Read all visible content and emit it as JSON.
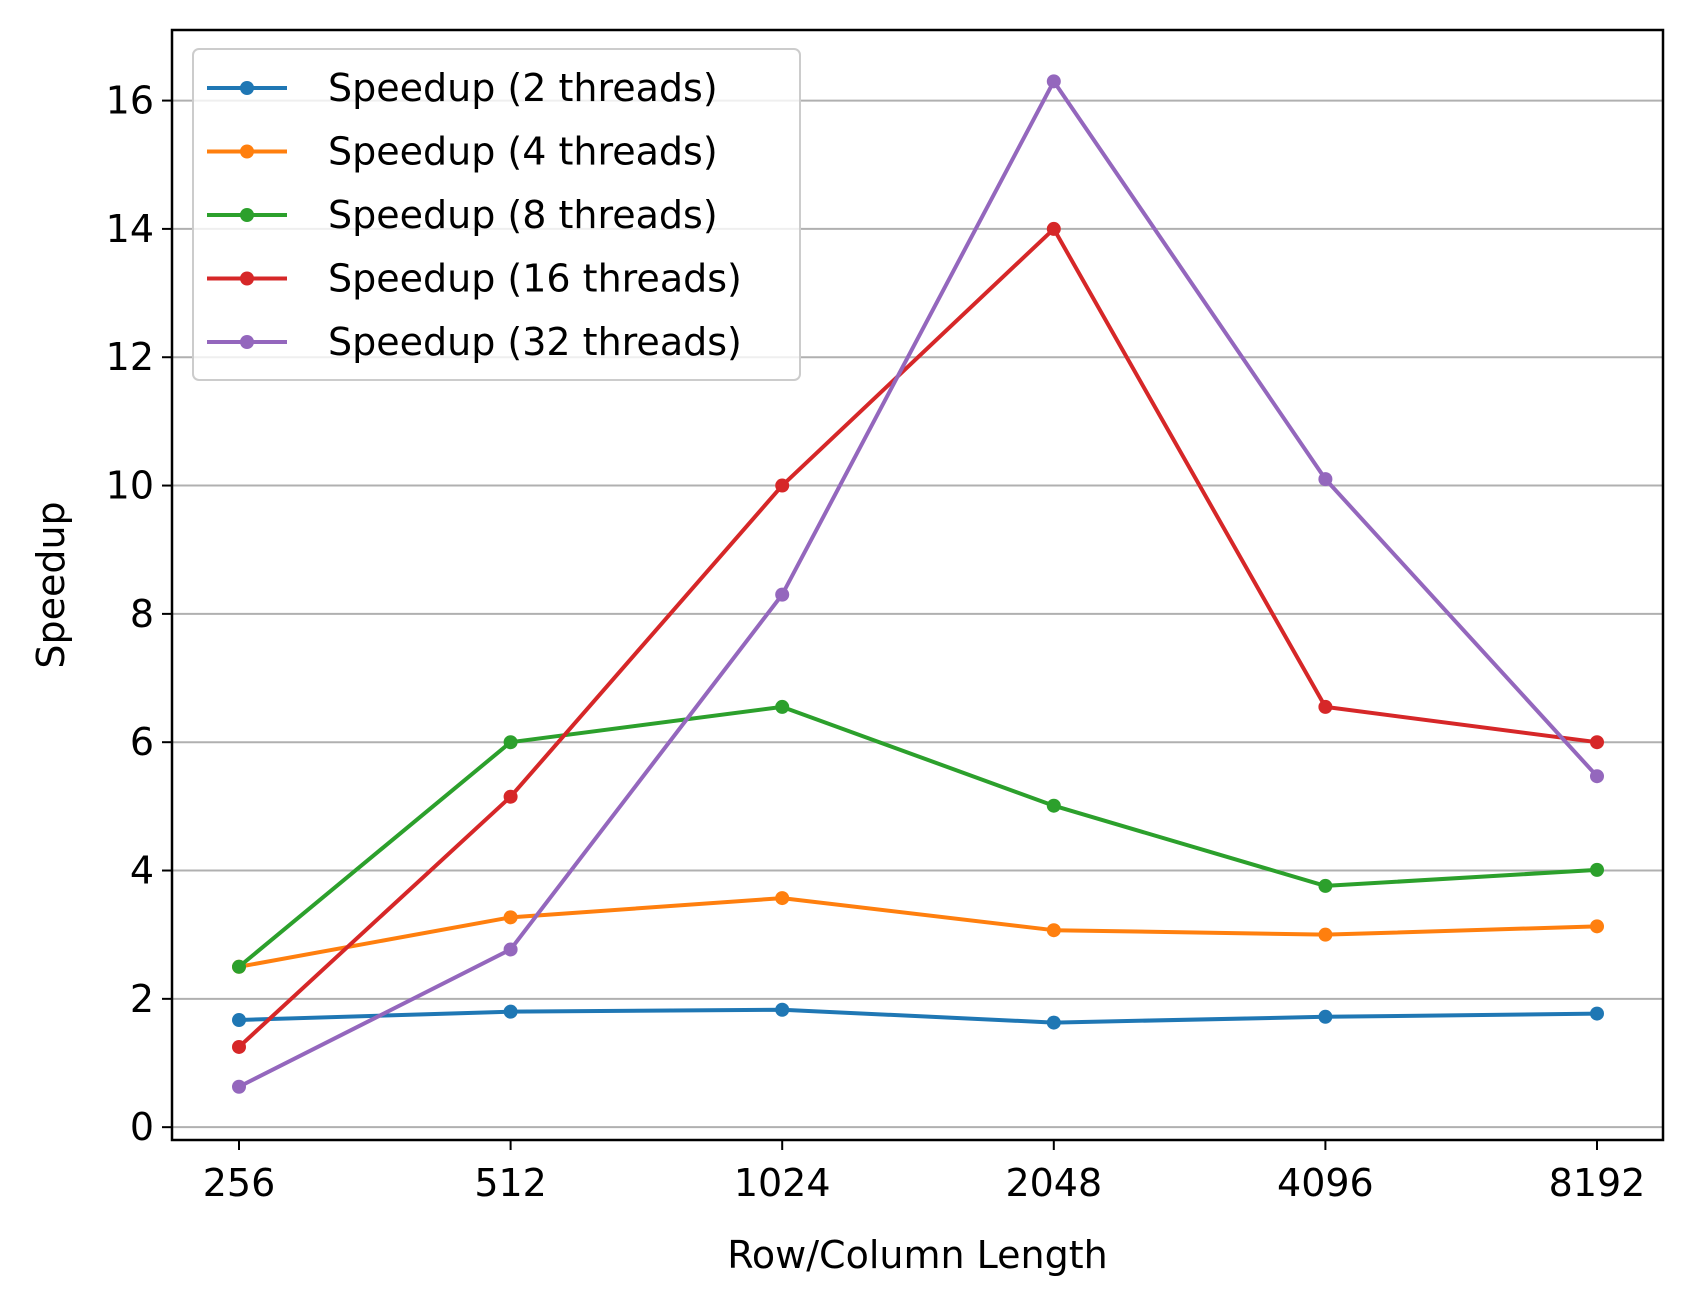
{
  "chart_data": {
    "type": "line",
    "title": "",
    "xlabel": "Row/Column Length",
    "ylabel": "Speedup",
    "categories": [
      "256",
      "512",
      "1024",
      "2048",
      "4096",
      "8192"
    ],
    "ylim": [
      -0.2,
      17.1
    ],
    "yticks": [
      0,
      2,
      4,
      6,
      8,
      10,
      12,
      14,
      16
    ],
    "grid": "y-axis horizontal gridlines",
    "legend_position": "upper-left",
    "series": [
      {
        "name": "Speedup (2 threads)",
        "color": "#1f77b4",
        "values": [
          1.67,
          1.8,
          1.83,
          1.63,
          1.72,
          1.77
        ]
      },
      {
        "name": "Speedup (4 threads)",
        "color": "#ff7f0e",
        "values": [
          2.5,
          3.27,
          3.57,
          3.07,
          3.0,
          3.13
        ]
      },
      {
        "name": "Speedup (8 threads)",
        "color": "#2ca02c",
        "values": [
          2.5,
          6.0,
          6.55,
          5.01,
          3.76,
          4.01
        ]
      },
      {
        "name": "Speedup (16 threads)",
        "color": "#d62728",
        "values": [
          1.25,
          5.15,
          10.0,
          14.0,
          6.55,
          6.0
        ]
      },
      {
        "name": "Speedup (32 threads)",
        "color": "#9467bd",
        "values": [
          0.63,
          2.77,
          8.3,
          16.3,
          10.1,
          5.47
        ]
      }
    ]
  }
}
